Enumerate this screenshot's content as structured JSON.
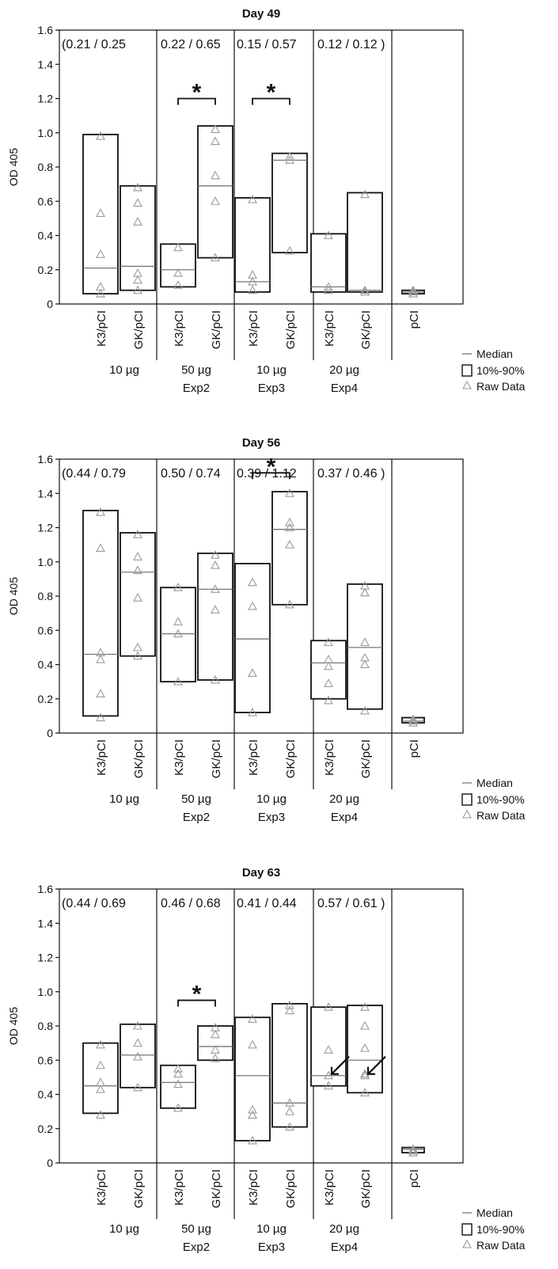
{
  "legend": {
    "median": "Median",
    "box": "10%-90%",
    "raw": "Raw Data"
  },
  "groups": [
    {
      "dose": "10 µg",
      "exp": "Exp2"
    },
    {
      "dose": "50 µg",
      "exp": ""
    },
    {
      "dose": "10 µg",
      "exp": "Exp3"
    },
    {
      "dose": "20 µg",
      "exp": "Exp4"
    }
  ],
  "chart_data": [
    {
      "type": "box",
      "title": "Day 49",
      "ylabel": "OD 405",
      "ylim": [
        0,
        1.6
      ],
      "yticks": [
        "0",
        "0.2",
        "0.4",
        "0.6",
        "0.8",
        "1.0",
        "1.2",
        "1.4",
        "1.6"
      ],
      "categories": [
        "K3/pCI",
        "GK/pCI",
        "K3/pCI",
        "GK/pCI",
        "K3/pCI",
        "GK/pCI",
        "K3/pCI",
        "GK/pCI",
        "pCI"
      ],
      "ratios": [
        "(0.21 / 0.25",
        "0.22 / 0.65",
        "0.15 / 0.57",
        "0.12 / 0.12 )"
      ],
      "boxes": [
        {
          "low": 0.06,
          "high": 0.99,
          "median": 0.21,
          "raw": [
            0.98,
            0.53,
            0.29,
            0.1,
            0.06
          ]
        },
        {
          "low": 0.08,
          "high": 0.69,
          "median": 0.22,
          "raw": [
            0.68,
            0.59,
            0.48,
            0.18,
            0.14,
            0.08
          ]
        },
        {
          "low": 0.1,
          "high": 0.35,
          "median": 0.2,
          "raw": [
            0.33,
            0.18,
            0.11
          ]
        },
        {
          "low": 0.27,
          "high": 1.04,
          "median": 0.69,
          "raw": [
            1.02,
            0.95,
            0.75,
            0.6,
            0.27
          ]
        },
        {
          "low": 0.07,
          "high": 0.62,
          "median": 0.13,
          "raw": [
            0.61,
            0.17,
            0.13,
            0.08
          ]
        },
        {
          "low": 0.3,
          "high": 0.88,
          "median": 0.84,
          "raw": [
            0.86,
            0.84,
            0.31
          ]
        },
        {
          "low": 0.07,
          "high": 0.41,
          "median": 0.1,
          "raw": [
            0.4,
            0.1,
            0.08
          ]
        },
        {
          "low": 0.07,
          "high": 0.65,
          "median": 0.08,
          "raw": [
            0.64,
            0.08,
            0.07
          ]
        },
        {
          "low": 0.06,
          "high": 0.08,
          "median": 0.07,
          "raw": [
            0.08,
            0.07,
            0.06
          ]
        }
      ],
      "significance": [
        {
          "from": 2,
          "to": 3,
          "y": 1.2,
          "label": "*"
        },
        {
          "from": 4,
          "to": 5,
          "y": 1.2,
          "label": "*"
        }
      ],
      "arrows": []
    },
    {
      "type": "box",
      "title": "Day 56",
      "ylabel": "OD 405",
      "ylim": [
        0,
        1.6
      ],
      "yticks": [
        "0",
        "0.2",
        "0.4",
        "0.6",
        "0.8",
        "1.0",
        "1.2",
        "1.4",
        "1.6"
      ],
      "categories": [
        "K3/pCI",
        "GK/pCI",
        "K3/pCI",
        "GK/pCI",
        "K3/pCI",
        "GK/pCI",
        "K3/pCI",
        "GK/pCI",
        "pCI"
      ],
      "ratios": [
        "(0.44 / 0.79",
        "0.50 / 0.74",
        "0.39 / 1.12",
        "0.37 / 0.46 )"
      ],
      "boxes": [
        {
          "low": 0.1,
          "high": 1.3,
          "median": 0.46,
          "raw": [
            1.29,
            1.08,
            0.47,
            0.43,
            0.23,
            0.09
          ]
        },
        {
          "low": 0.45,
          "high": 1.17,
          "median": 0.94,
          "raw": [
            1.16,
            1.03,
            0.95,
            0.79,
            0.5,
            0.45
          ]
        },
        {
          "low": 0.3,
          "high": 0.85,
          "median": 0.58,
          "raw": [
            0.85,
            0.65,
            0.58,
            0.3
          ]
        },
        {
          "low": 0.31,
          "high": 1.05,
          "median": 0.84,
          "raw": [
            1.04,
            0.98,
            0.84,
            0.72,
            0.31
          ]
        },
        {
          "low": 0.12,
          "high": 0.99,
          "median": 0.55,
          "raw": [
            0.88,
            0.74,
            0.35,
            0.12
          ]
        },
        {
          "low": 0.75,
          "high": 1.41,
          "median": 1.19,
          "raw": [
            1.4,
            1.23,
            1.2,
            1.1,
            0.75
          ]
        },
        {
          "low": 0.2,
          "high": 0.54,
          "median": 0.41,
          "raw": [
            0.53,
            0.43,
            0.39,
            0.29,
            0.19
          ]
        },
        {
          "low": 0.14,
          "high": 0.87,
          "median": 0.5,
          "raw": [
            0.86,
            0.82,
            0.53,
            0.44,
            0.4,
            0.13
          ]
        },
        {
          "low": 0.06,
          "high": 0.09,
          "median": 0.07,
          "raw": [
            0.08,
            0.07,
            0.06
          ]
        }
      ],
      "significance": [
        {
          "from": 4,
          "to": 5,
          "y": 1.52,
          "label": "*"
        }
      ],
      "arrows": []
    },
    {
      "type": "box",
      "title": "Day 63",
      "ylabel": "OD 405",
      "ylim": [
        0,
        1.6
      ],
      "yticks": [
        "0",
        "0.2",
        "0.4",
        "0.6",
        "0.8",
        "1.0",
        "1.2",
        "1.4",
        "1.6"
      ],
      "categories": [
        "K3/pCI",
        "GK/pCI",
        "K3/pCI",
        "GK/pCI",
        "K3/pCI",
        "GK/pCI",
        "K3/pCI",
        "GK/pCI",
        "pCI"
      ],
      "ratios": [
        "(0.44 / 0.69",
        "0.46 / 0.68",
        "0.41 / 0.44",
        "0.57 / 0.61 )"
      ],
      "boxes": [
        {
          "low": 0.29,
          "high": 0.7,
          "median": 0.45,
          "raw": [
            0.69,
            0.57,
            0.47,
            0.43,
            0.28
          ]
        },
        {
          "low": 0.44,
          "high": 0.81,
          "median": 0.63,
          "raw": [
            0.8,
            0.7,
            0.62,
            0.44
          ]
        },
        {
          "low": 0.32,
          "high": 0.57,
          "median": 0.47,
          "raw": [
            0.55,
            0.52,
            0.46,
            0.32
          ]
        },
        {
          "low": 0.6,
          "high": 0.8,
          "median": 0.68,
          "raw": [
            0.79,
            0.75,
            0.66,
            0.61
          ]
        },
        {
          "low": 0.13,
          "high": 0.85,
          "median": 0.51,
          "raw": [
            0.84,
            0.69,
            0.31,
            0.28,
            0.13
          ]
        },
        {
          "low": 0.21,
          "high": 0.93,
          "median": 0.35,
          "raw": [
            0.92,
            0.89,
            0.35,
            0.3,
            0.21
          ]
        },
        {
          "low": 0.45,
          "high": 0.91,
          "median": 0.51,
          "raw": [
            0.91,
            0.66,
            0.51,
            0.45
          ]
        },
        {
          "low": 0.41,
          "high": 0.92,
          "median": 0.6,
          "raw": [
            0.91,
            0.8,
            0.67,
            0.52,
            0.51,
            0.41
          ]
        },
        {
          "low": 0.06,
          "high": 0.09,
          "median": 0.08,
          "raw": [
            0.08,
            0.07,
            0.06
          ]
        }
      ],
      "significance": [
        {
          "from": 2,
          "to": 3,
          "y": 0.95,
          "label": "*"
        }
      ],
      "arrows": [
        {
          "box": 6,
          "y": 0.51
        },
        {
          "box": 7,
          "y": 0.51
        }
      ]
    }
  ]
}
